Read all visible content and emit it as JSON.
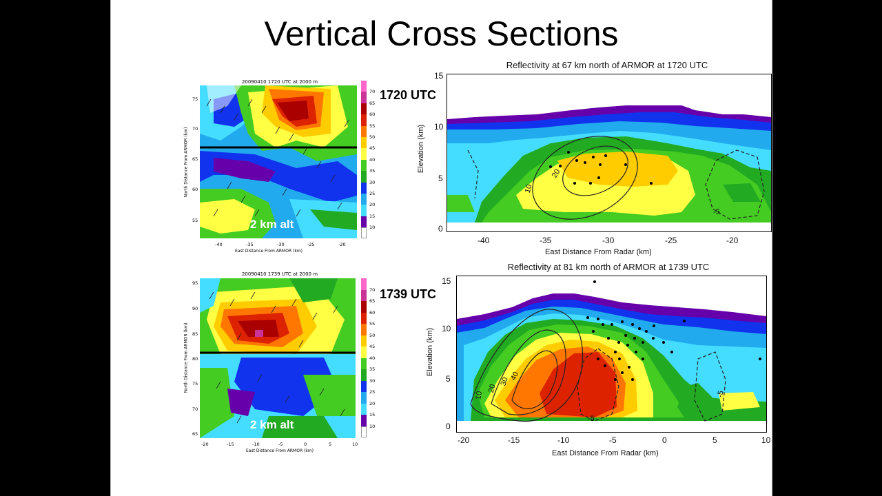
{
  "slide_title": "Vertical Cross Sections",
  "maps": [
    {
      "title": "20090410 1720 UTC at 2000 m",
      "time_label": "1720 UTC",
      "alt_label": "2 km alt",
      "xticks": [
        "-40",
        "-35",
        "-30",
        "-25",
        "-20"
      ],
      "yticks": [
        "75",
        "70",
        "65",
        "60",
        "55"
      ],
      "xlabel": "East Distance From ARMOR (km)",
      "ylabel": "North Distance From ARMOR (km)"
    },
    {
      "title": "20090410 1739 UTC at 2000 m",
      "time_label": "1739 UTC",
      "alt_label": "2 km alt",
      "xticks": [
        "-20",
        "-15",
        "-10",
        "-5",
        "0",
        "5",
        "10"
      ],
      "yticks": [
        "95",
        "90",
        "85",
        "80",
        "75",
        "70",
        "65"
      ],
      "xlabel": "East Distance From ARMOR (km)",
      "ylabel": "North Distance From ARMOR (km)"
    }
  ],
  "colorbar": {
    "ticks": [
      "70",
      "65",
      "60",
      "55",
      "50",
      "45",
      "40",
      "35",
      "30",
      "25",
      "20",
      "15",
      "10"
    ],
    "colors": [
      "#ff66cc",
      "#cc3399",
      "#aa0000",
      "#dd2200",
      "#ff7700",
      "#ffcc00",
      "#ffff44",
      "#44cc22",
      "#22aa22",
      "#1133ee",
      "#22aaee",
      "#44ddff",
      "#6600aa",
      "#ffffff"
    ]
  },
  "cross_sections": [
    {
      "title": "Reflectivity at 67 km north of ARMOR at 1720 UTC",
      "xticks": [
        "-40",
        "-35",
        "-30",
        "-25",
        "-20"
      ],
      "yticks": [
        "15",
        "10",
        "5",
        "0"
      ],
      "xlabel": "East Distance From Radar (km)",
      "ylabel": "Elevation (km)",
      "contour_labels": [
        "10",
        "20",
        "-5"
      ]
    },
    {
      "title": "Reflectivity at 81 km north of ARMOR at 1739 UTC",
      "xticks": [
        "-20",
        "-15",
        "-10",
        "-5",
        "0",
        "5",
        "10"
      ],
      "yticks": [
        "15",
        "10",
        "5",
        "0"
      ],
      "xlabel": "East Distance From Radar (km)",
      "ylabel": "Elevation (km)",
      "contour_labels": [
        "10",
        "20",
        "30",
        "40",
        "-5",
        "-5"
      ]
    }
  ]
}
